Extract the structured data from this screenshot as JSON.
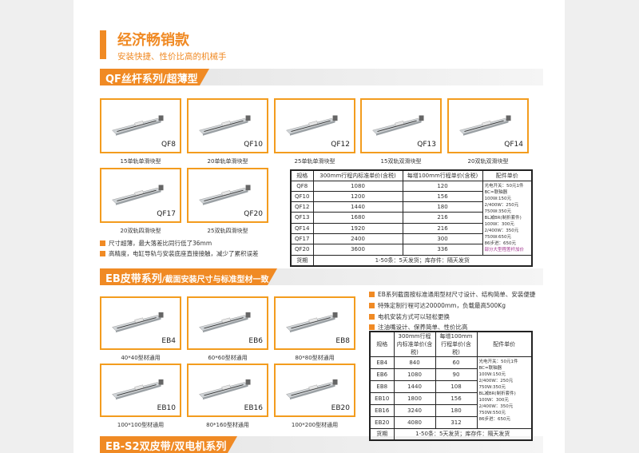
{
  "header": {
    "title": "经济畅销款",
    "subtitle": "安装快捷、性价比高的机械手"
  },
  "qf": {
    "banner": "QF丝杆系列/超薄型",
    "products": [
      {
        "model": "QF8",
        "caption": "15单轨单滑块型"
      },
      {
        "model": "QF10",
        "caption": "20单轨单滑块型"
      },
      {
        "model": "QF12",
        "caption": "25单轨单滑块型"
      },
      {
        "model": "QF13",
        "caption": "15双轨双滑块型"
      },
      {
        "model": "QF14",
        "caption": "20双轨双滑块型"
      },
      {
        "model": "QF17",
        "caption": "20双轨四滑块型"
      },
      {
        "model": "QF20",
        "caption": "25双轨四滑块型"
      }
    ],
    "bullets": [
      "尺寸超薄，最大落差比同行低了36mm",
      "高精度，电缸导轨与安装底座直接接触，减少了累积误差"
    ],
    "table": {
      "headers": [
        "规格",
        "300mm行程内标准单价(含税)",
        "每增100mm行程单价(含税)",
        "配件单价"
      ],
      "rows": [
        [
          "QF8",
          "1080",
          "120"
        ],
        [
          "QF10",
          "1200",
          "156"
        ],
        [
          "QF12",
          "1440",
          "180"
        ],
        [
          "QF13",
          "1680",
          "216"
        ],
        [
          "QF14",
          "1920",
          "216"
        ],
        [
          "QF17",
          "2400",
          "300"
        ],
        [
          "QF20",
          "3600",
          "336"
        ]
      ],
      "accessories": [
        "光电开关：50元1件",
        "BC=联轴器",
        "100W:150元",
        "2/400W：250元",
        "750W:350元",
        "BL减BR(制折套件)",
        "100W：300元",
        "2/400W：350元",
        "750W:650元",
        "86步进：650元"
      ],
      "accessories_note": "部分大型程差杆加价",
      "footer": [
        "货期",
        "1-50条：5天发货；库存件：隔天发货"
      ]
    }
  },
  "eb": {
    "banner": "EB皮带系列",
    "banner_sub": "/截面安装尺寸与标准型材一致",
    "products": [
      {
        "model": "EB4",
        "caption": "40*40型材通用"
      },
      {
        "model": "EB6",
        "caption": "60*60型材通用"
      },
      {
        "model": "EB8",
        "caption": "80*80型材通用"
      },
      {
        "model": "EB10",
        "caption": "100*100型材通用"
      },
      {
        "model": "EB16",
        "caption": "80*160型材通用"
      },
      {
        "model": "EB20",
        "caption": "100*200型材通用"
      }
    ],
    "bullets": [
      "EB系列截面按标准通用型材尺寸设计、结构简单、安装便捷",
      "特殊定制行程可达20000mm，负载最高500Kg",
      "电机安装方式可以轻松更换",
      "注油嘴设计、保养简单、性价比高"
    ],
    "table": {
      "headers": [
        "规格",
        "300mm行程内标准单价(含税)",
        "每增100mm行程单价(含税)",
        "配件单价"
      ],
      "rows": [
        [
          "EB4",
          "840",
          "60"
        ],
        [
          "EB6",
          "1080",
          "90"
        ],
        [
          "EB8",
          "1440",
          "108"
        ],
        [
          "EB10",
          "1800",
          "156"
        ],
        [
          "EB16",
          "3240",
          "180"
        ],
        [
          "EB20",
          "4080",
          "312"
        ]
      ],
      "accessories": [
        "光电开关：50元1件",
        "BC=联轴器",
        "100W:150元",
        "2/400W：250元",
        "750W:350元",
        "BL减BR(制折套件)",
        "100W：300元",
        "2/400W：350元",
        "750W:550元",
        "86步进：650元"
      ],
      "footer": [
        "货期",
        "1-50条：5天发货；库存件：隔天发货"
      ]
    }
  },
  "ebs2": {
    "banner": "EB-S2双皮带/双电机系列"
  },
  "colors": {
    "accent": "#f08a24",
    "card_border": "#f39c1e"
  }
}
